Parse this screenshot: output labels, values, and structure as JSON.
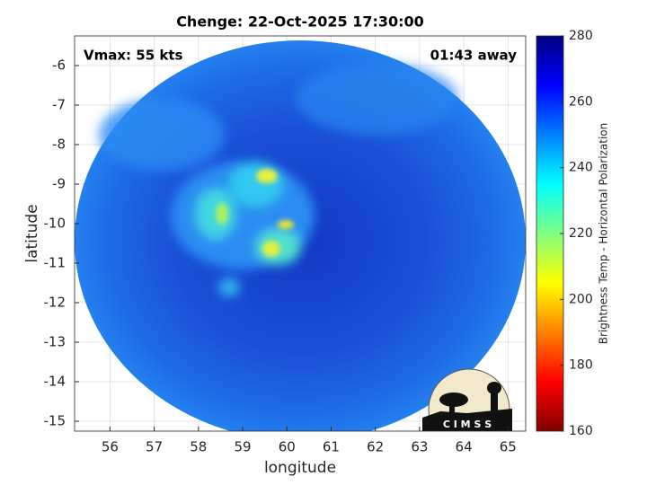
{
  "chart_data": {
    "type": "image",
    "title": "Chenge: 22-Oct-2025 17:30:00",
    "annotations": [
      "Vmax: 55 kts",
      "01:43 away"
    ],
    "xlabel": "longitude",
    "ylabel": "latitude",
    "xlim": [
      55.2,
      65.4
    ],
    "xticks": [
      56,
      57,
      58,
      59,
      60,
      61,
      62,
      63,
      64,
      65
    ],
    "ylim": [
      -15.25,
      -5.25
    ],
    "yticks": [
      -15,
      -14,
      -13,
      -12,
      -11,
      -10,
      -9,
      -8,
      -7,
      -6
    ],
    "grid": true,
    "colorbar": {
      "label": "Brightness Temp - Horizontal Polarization",
      "lim": [
        160,
        280
      ],
      "ticks": [
        160,
        180,
        200,
        220,
        240,
        260,
        280
      ],
      "colormap": [
        "#800000",
        "#ff0000",
        "#ff8000",
        "#ffff00",
        "#80ff80",
        "#00ffff",
        "#0080ff",
        "#0000ff",
        "#000080"
      ]
    },
    "logo_text": "C I M S S"
  }
}
